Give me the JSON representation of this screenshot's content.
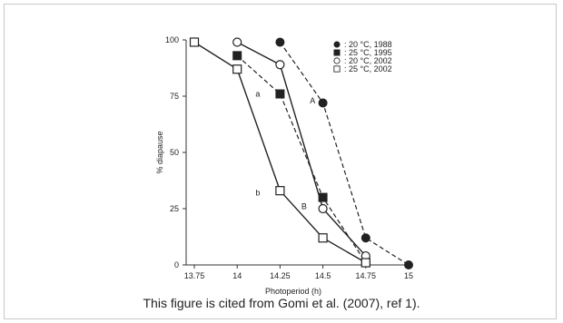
{
  "caption": "This figure is cited from Gomi et al. (2007), ref 1).",
  "chart_data": {
    "type": "line",
    "xlabel": "Photoperiod (h)",
    "ylabel": "% diapause",
    "xlim": [
      13.75,
      15
    ],
    "ylim": [
      0,
      100
    ],
    "x_ticks": [
      "13.75",
      "14",
      "14.25",
      "14.5",
      "14.75",
      "15"
    ],
    "y_ticks": [
      "0",
      "25",
      "50",
      "75",
      "100"
    ],
    "grid": false,
    "legend_position": "top-right",
    "series": [
      {
        "name": ": 20 °C, 1988",
        "marker": "filled-circle",
        "line": "dashed",
        "points": [
          [
            14.25,
            99
          ],
          [
            14.5,
            72
          ],
          [
            14.75,
            12
          ],
          [
            15,
            0
          ]
        ]
      },
      {
        "name": ": 25 °C, 1995",
        "marker": "filled-square",
        "line": "dashed",
        "points": [
          [
            14,
            93
          ],
          [
            14.25,
            76
          ],
          [
            14.5,
            30
          ],
          [
            14.75,
            1
          ]
        ]
      },
      {
        "name": ": 20 °C, 2002",
        "marker": "open-circle",
        "line": "solid",
        "points": [
          [
            14,
            99
          ],
          [
            14.25,
            89
          ],
          [
            14.5,
            25
          ],
          [
            14.75,
            4
          ]
        ]
      },
      {
        "name": ": 25 °C, 2002",
        "marker": "open-square",
        "line": "solid",
        "points": [
          [
            13.75,
            99
          ],
          [
            14,
            87
          ],
          [
            14.25,
            33
          ],
          [
            14.5,
            12
          ],
          [
            14.75,
            1
          ]
        ]
      }
    ],
    "annotations": [
      {
        "text": "a",
        "x": 14.12,
        "y": 76
      },
      {
        "text": "A",
        "x": 14.44,
        "y": 73
      },
      {
        "text": "b",
        "x": 14.12,
        "y": 32
      },
      {
        "text": "B",
        "x": 14.39,
        "y": 26
      }
    ]
  }
}
